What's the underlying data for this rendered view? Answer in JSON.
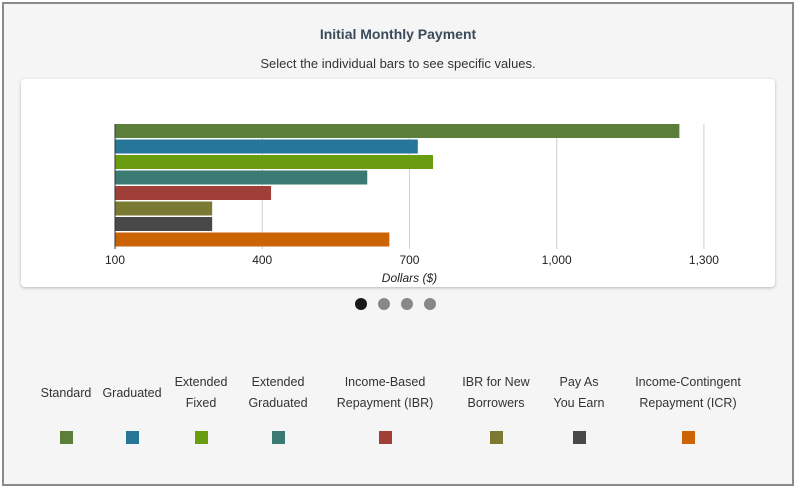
{
  "header": {
    "title": "Initial Monthly Payment",
    "subtitle": "Select the individual bars to see specific values."
  },
  "chart_data": {
    "type": "bar",
    "orientation": "horizontal",
    "categories": [
      "Standard",
      "Graduated",
      "Extended Fixed",
      "Extended Graduated",
      "Income-Based Repayment (IBR)",
      "IBR for New Borrowers",
      "Pay As You Earn",
      "Income-Contingent Repayment (ICR)"
    ],
    "values": [
      1250,
      717,
      748,
      614,
      418,
      298,
      298,
      659
    ],
    "colors": [
      "#5b7f3b",
      "#26769a",
      "#6a9c10",
      "#3a7a72",
      "#a03e38",
      "#7a7a32",
      "#484848",
      "#cc6304"
    ],
    "xlim": [
      100,
      1400
    ],
    "xticks": [
      100,
      400,
      700,
      1000,
      1300
    ],
    "xtick_labels": [
      "100",
      "400",
      "700",
      "1,000",
      "1,300"
    ],
    "xlabel": "Dollars ($)",
    "grid": true
  },
  "pagination": {
    "count": 4,
    "active": 0
  },
  "legend": [
    {
      "label": "Standard",
      "color": "#5b7f3b"
    },
    {
      "label": "Graduated",
      "color": "#26769a"
    },
    {
      "label": "Extended\nFixed",
      "color": "#6a9c10"
    },
    {
      "label": "Extended\nGraduated",
      "color": "#3a7a72"
    },
    {
      "label": "Income-Based\nRepayment (IBR)",
      "color": "#a03e38"
    },
    {
      "label": "IBR for New\nBorrowers",
      "color": "#7a7a32"
    },
    {
      "label": "Pay As\nYou Earn",
      "color": "#484848"
    },
    {
      "label": "Income-Contingent\nRepayment (ICR)",
      "color": "#cc6304"
    }
  ]
}
